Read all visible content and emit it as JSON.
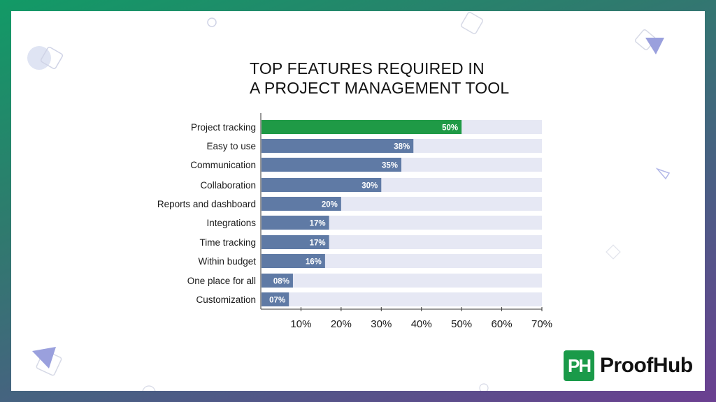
{
  "page": {
    "title_line1": "TOP FEATURES REQUIRED IN",
    "title_line2": "A PROJECT MANAGEMENT TOOL"
  },
  "brand": {
    "logo_mark": "PH",
    "name": "ProofHub",
    "color": "#1a9a49"
  },
  "colors": {
    "highlight_bar": "#1f9a46",
    "bar": "#5f7aa5",
    "track": "#e6e8f4"
  },
  "chart_data": {
    "type": "bar",
    "orientation": "horizontal",
    "title": "TOP FEATURES REQUIRED IN A PROJECT MANAGEMENT TOOL",
    "xlabel": "",
    "ylabel": "",
    "xlim": [
      0,
      70
    ],
    "xticks": [
      "10%",
      "20%",
      "30%",
      "40%",
      "50%",
      "60%",
      "70%"
    ],
    "categories": [
      "Project tracking",
      "Easy to use",
      "Communication",
      "Collaboration",
      "Reports and dashboard",
      "Integrations",
      "Time tracking",
      "Within budget",
      "One place for all",
      "Customization"
    ],
    "values": [
      50,
      38,
      35,
      30,
      20,
      17,
      17,
      16,
      8,
      7
    ],
    "value_labels": [
      "50%",
      "38%",
      "35%",
      "30%",
      "20%",
      "17%",
      "17%",
      "16%",
      "08%",
      "07%"
    ],
    "highlight_index": 0,
    "grid": false
  }
}
